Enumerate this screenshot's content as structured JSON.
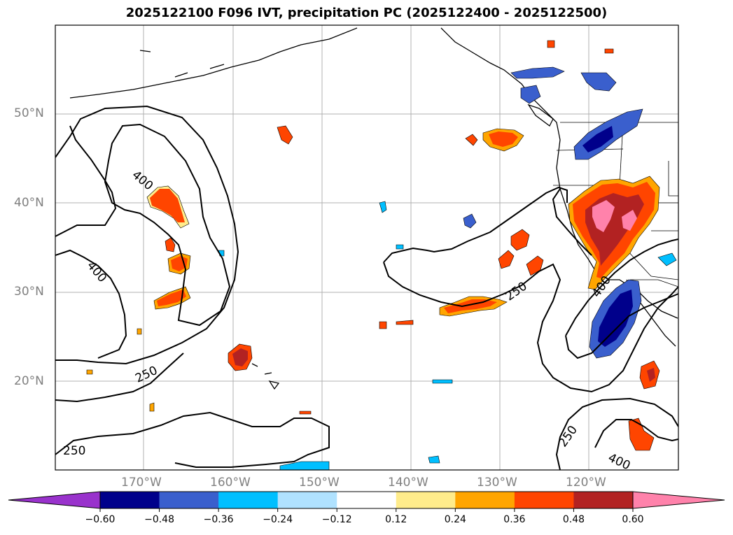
{
  "title": "2025122100 F096 IVT, precipitation PC (2025122400 - 2025122500)",
  "lat_labels": [
    "50°N",
    "40°N",
    "30°N",
    "20°N"
  ],
  "lon_labels": [
    "170°W",
    "160°W",
    "150°W",
    "140°W",
    "130°W",
    "120°W"
  ],
  "contour_labels": [
    "400",
    "400",
    "250",
    "250",
    "400",
    "250",
    "250",
    "400"
  ],
  "colorbar": {
    "ticks": [
      "−0.60",
      "−0.48",
      "−0.36",
      "−0.24",
      "−0.12",
      "0.12",
      "0.24",
      "0.36",
      "0.48",
      "0.60"
    ],
    "colors": [
      "#9932cc",
      "#00008b",
      "#3a5fcd",
      "#00bfff",
      "#b0e2ff",
      "#ffffff",
      "#ffec8b",
      "#ffa500",
      "#ff4500",
      "#b22222",
      "#ff82ab"
    ]
  },
  "chart_data": {
    "type": "heatmap",
    "title": "2025122100 F096 IVT, precipitation PC (2025122400 - 2025122500)",
    "xlabel": "",
    "ylabel": "",
    "x_ticks": [
      "170°W",
      "160°W",
      "150°W",
      "140°W",
      "130°W",
      "120°W"
    ],
    "y_ticks": [
      "50°N",
      "40°N",
      "30°N",
      "20°N"
    ],
    "contour_levels": [
      250,
      400
    ],
    "colorbar_ticks": [
      -0.6,
      -0.48,
      -0.36,
      -0.24,
      -0.12,
      0.12,
      0.24,
      0.36,
      0.48,
      0.6
    ],
    "colorbar_extend": "both"
  }
}
